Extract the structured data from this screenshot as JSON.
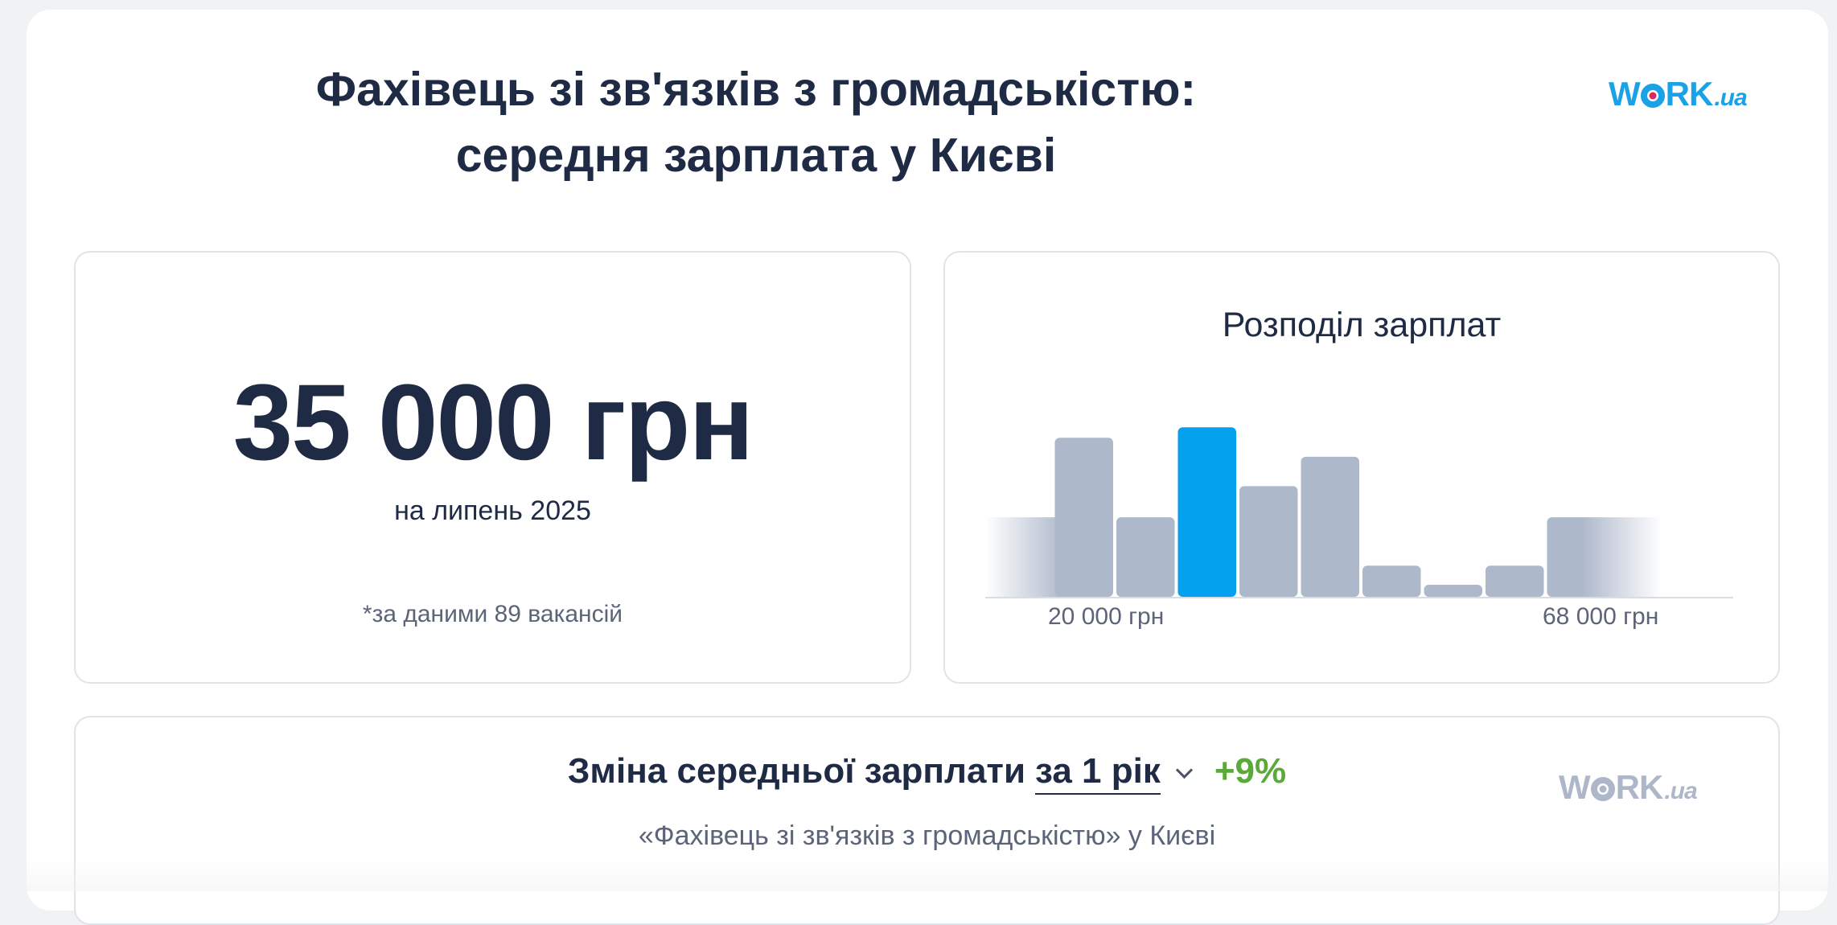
{
  "header": {
    "title": "Фахівець зі зв'язків з громадськістю: середня зарплата у Києві",
    "logo": {
      "brand": "W",
      "brand_o": "O",
      "brand_rest": "RK",
      "suffix": ".ua"
    }
  },
  "salary": {
    "value": "35 000 грн",
    "date": "на липень 2025",
    "note": "*за даними 89 вакансій"
  },
  "distribution": {
    "title": "Розподіл зарплат",
    "tick_labels": [
      "20 000 грн",
      "68 000 грн"
    ]
  },
  "change": {
    "label": "Зміна середньої зарплати",
    "period": "за 1 рік",
    "value": "+9%",
    "subtitle": "«Фахівець зі зв'язків з громадськістю» у Києві"
  },
  "colors": {
    "accent": "#1aa1e6",
    "bar": "#aeb8cb",
    "bar_highlight": "#04a1ef",
    "positive": "#5aaa3a",
    "text": "#1f2a44"
  },
  "chart_data": {
    "type": "bar",
    "title": "Розподіл зарплат",
    "x_tick_labels": [
      "20 000 грн",
      "68 000 грн"
    ],
    "values": [
      0.46,
      0.92,
      0.46,
      0.98,
      0.64,
      0.81,
      0.18,
      0.07,
      0.18,
      0.46
    ],
    "highlight_index": 3,
    "edge_fade": true,
    "y_axis": "relative frequency (unlabeled)"
  }
}
